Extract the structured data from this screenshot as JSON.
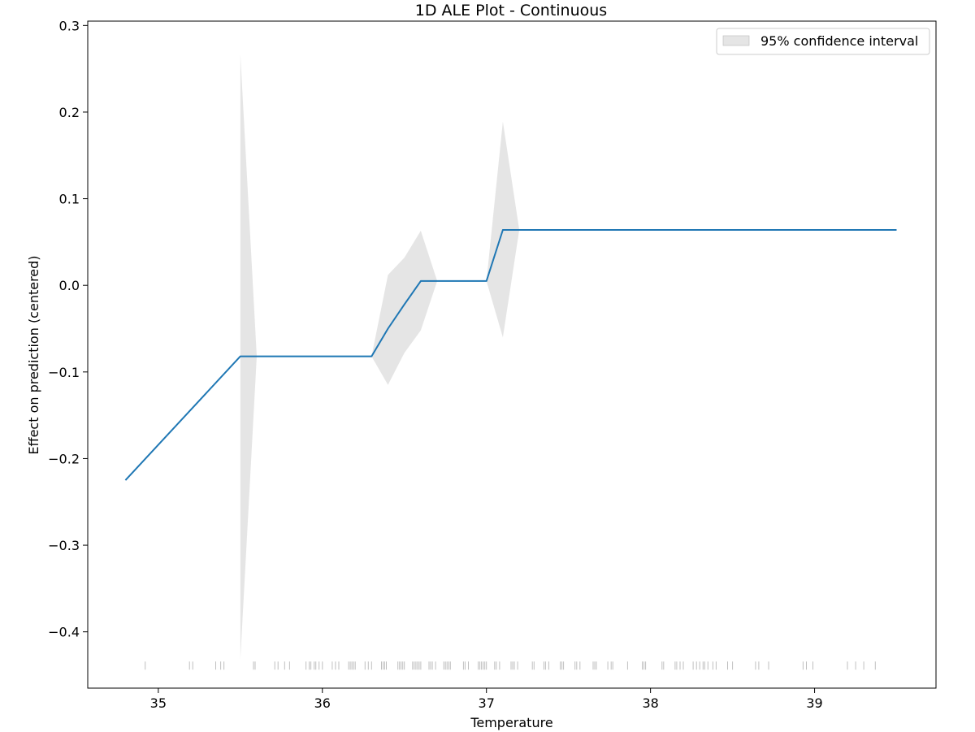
{
  "chart_data": {
    "type": "line",
    "title": "1D ALE Plot - Continuous",
    "xlabel": "Temperature",
    "ylabel": "Effect on prediction (centered)",
    "xlim": [
      34.57,
      39.74
    ],
    "ylim": [
      -0.465,
      0.305
    ],
    "xticks": [
      35,
      36,
      37,
      38,
      39
    ],
    "yticks": [
      0.3,
      0.2,
      0.1,
      0.0,
      -0.1,
      -0.2,
      -0.3,
      -0.4
    ],
    "ytick_labels": [
      "0.3",
      "0.2",
      "0.1",
      "0.0",
      "−0.1",
      "−0.2",
      "−0.3",
      "−0.4"
    ],
    "grid": false,
    "legend": {
      "position": "top-right",
      "entries": [
        "95% confidence interval"
      ]
    },
    "colors": {
      "line": "#1f77b4",
      "band": "#d3d3d3",
      "rug": "#000000"
    },
    "series": [
      {
        "x": [
          34.8,
          35.5,
          36.3,
          36.4,
          36.5,
          36.6,
          37.0,
          37.1,
          39.5
        ],
        "y": [
          -0.225,
          -0.082,
          -0.082,
          -0.05,
          -0.022,
          0.005,
          0.005,
          0.064,
          0.064
        ]
      }
    ],
    "confidence_band": {
      "x": [
        35.5,
        35.6,
        36.3,
        36.4,
        36.5,
        36.6,
        36.7,
        37.0,
        37.1,
        37.2
      ],
      "lower": [
        -0.432,
        -0.082,
        -0.082,
        -0.115,
        -0.078,
        -0.052,
        0.005,
        0.005,
        -0.06,
        0.064
      ],
      "upper": [
        0.267,
        -0.082,
        -0.082,
        0.012,
        0.032,
        0.063,
        0.005,
        0.005,
        0.189,
        0.064
      ]
    },
    "rug": {
      "y": -0.439,
      "x": [
        34.92,
        35.19,
        35.21,
        35.35,
        35.38,
        35.4,
        35.58,
        35.59,
        35.71,
        35.73,
        35.77,
        35.8,
        35.9,
        35.92,
        35.93,
        35.95,
        35.96,
        35.98,
        36.0,
        36.06,
        36.08,
        36.1,
        36.16,
        36.17,
        36.18,
        36.19,
        36.2,
        36.26,
        36.28,
        36.3,
        36.36,
        36.37,
        36.38,
        36.39,
        36.46,
        36.47,
        36.48,
        36.49,
        36.5,
        36.55,
        36.56,
        36.57,
        36.58,
        36.59,
        36.6,
        36.65,
        36.66,
        36.67,
        36.69,
        36.74,
        36.75,
        36.76,
        36.77,
        36.78,
        36.86,
        36.87,
        36.89,
        36.95,
        36.96,
        36.97,
        36.98,
        36.99,
        37.0,
        37.05,
        37.06,
        37.08,
        37.15,
        37.16,
        37.17,
        37.19,
        37.28,
        37.29,
        37.35,
        37.36,
        37.38,
        37.45,
        37.46,
        37.47,
        37.54,
        37.55,
        37.57,
        37.65,
        37.66,
        37.67,
        37.74,
        37.76,
        37.77,
        37.86,
        37.95,
        37.96,
        37.97,
        38.07,
        38.08,
        38.15,
        38.16,
        38.18,
        38.2,
        38.26,
        38.28,
        38.3,
        38.32,
        38.33,
        38.35,
        38.38,
        38.4,
        38.47,
        38.5,
        38.64,
        38.66,
        38.72,
        38.93,
        38.95,
        38.99,
        39.2,
        39.25,
        39.3,
        39.37
      ]
    }
  }
}
